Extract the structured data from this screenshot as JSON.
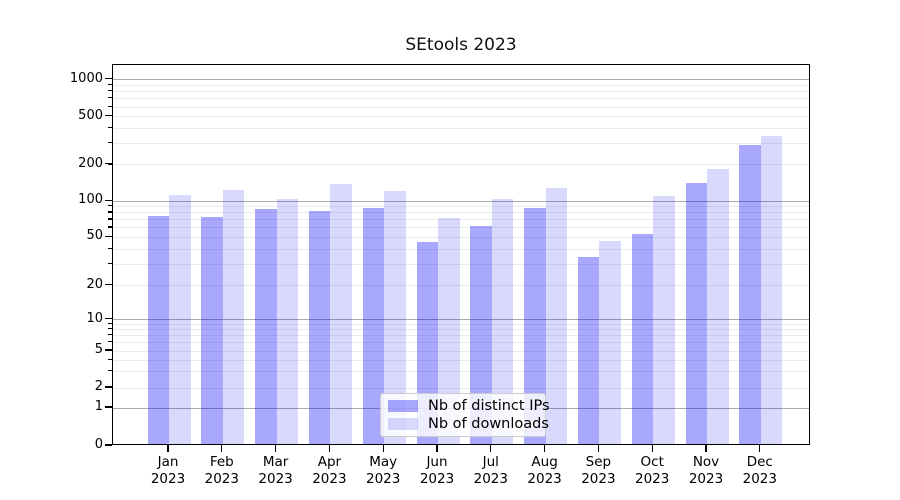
{
  "title": "SEtools 2023",
  "colors": {
    "bar_distinct_ips": "rgba(0,0,250,0.34)",
    "bar_downloads": "rgba(0,0,250,0.15)",
    "grid_major": "#ababab",
    "grid_minor": "#ebebeb",
    "axis": "#000000",
    "legend_border": "#cccccc"
  },
  "chart_data": {
    "type": "bar",
    "title": "SEtools 2023",
    "yscale": "log (0 shown at axis base)",
    "grid": true,
    "legend_position": "bottom-center",
    "year_label": "2023",
    "months": [
      "Jan",
      "Feb",
      "Mar",
      "Apr",
      "May",
      "Jun",
      "Jul",
      "Aug",
      "Sep",
      "Oct",
      "Nov",
      "Dec"
    ],
    "yticks": [
      0,
      1,
      2,
      5,
      10,
      20,
      50,
      100,
      200,
      500,
      1000
    ],
    "ylim": [
      0,
      1300
    ],
    "series": [
      {
        "name": "Nb of distinct IPs",
        "color": "rgba(0,0,250,0.34)",
        "values": [
          73,
          71,
          83,
          80,
          85,
          44,
          60,
          84,
          33,
          51,
          137,
          280
        ]
      },
      {
        "name": "Nb of downloads",
        "color": "rgba(0,0,250,0.15)",
        "values": [
          108,
          120,
          100,
          135,
          117,
          70,
          100,
          124,
          45,
          107,
          178,
          332
        ]
      }
    ]
  }
}
